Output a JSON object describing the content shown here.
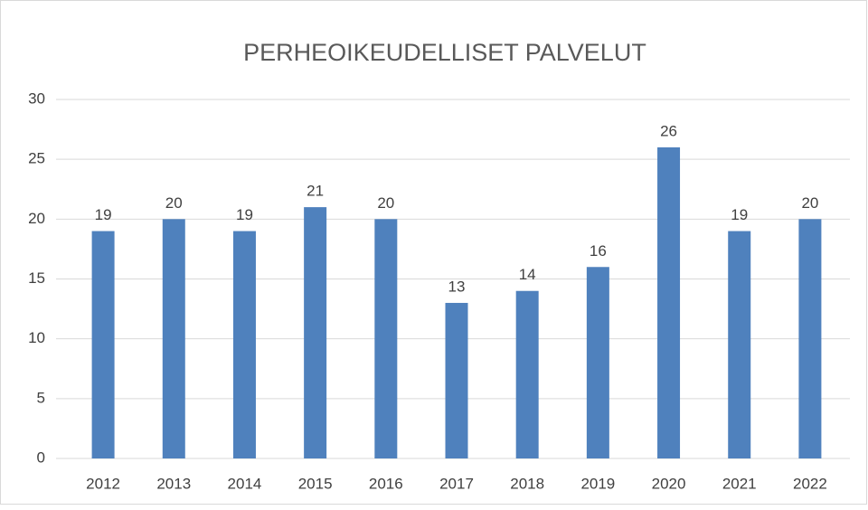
{
  "chart_data": {
    "type": "bar",
    "title": "PERHEOIKEUDELLISET PALVELUT",
    "categories": [
      "2012",
      "2013",
      "2014",
      "2015",
      "2016",
      "2017",
      "2018",
      "2019",
      "2020",
      "2021",
      "2022"
    ],
    "values": [
      19,
      20,
      19,
      21,
      20,
      13,
      14,
      16,
      26,
      19,
      20
    ],
    "color": "#4f81bd",
    "ylim": [
      0,
      30
    ],
    "yticks": [
      0,
      5,
      10,
      15,
      20,
      25,
      30
    ],
    "grid": true
  }
}
